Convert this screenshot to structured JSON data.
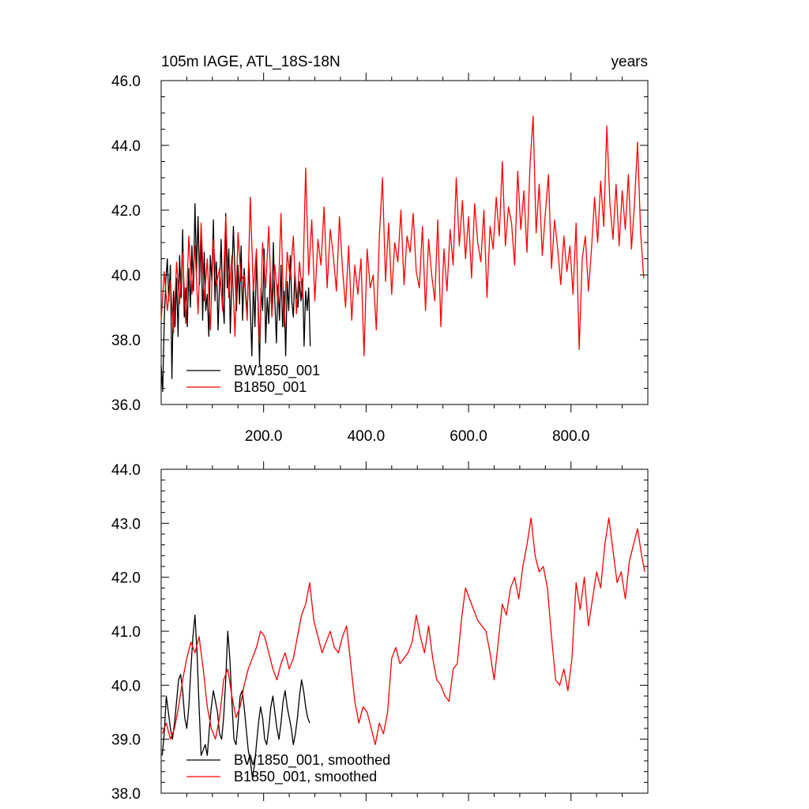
{
  "figure": {
    "title_left": "105m IAGE, ATL_18S-18N",
    "title_right": "years"
  },
  "colors": {
    "series_a": "#000000",
    "series_b": "#ff0000",
    "frame": "#000000"
  },
  "chart_data": [
    {
      "type": "line",
      "title": "105m IAGE, ATL_18S-18N",
      "units": "years",
      "xlim": [
        0,
        950
      ],
      "ylim": [
        36.0,
        46.0
      ],
      "x_ticks": [
        200,
        400,
        600,
        800
      ],
      "x_tick_labels": [
        "200.0",
        "400.0",
        "600.0",
        "800.0"
      ],
      "y_ticks": [
        36,
        38,
        40,
        42,
        44,
        46
      ],
      "y_tick_labels": [
        "36.0",
        "38.0",
        "40.0",
        "42.0",
        "44.0",
        "46.0"
      ],
      "legend_position": "bottom-left",
      "grid": false,
      "series": [
        {
          "name": "BW1850_001",
          "color": "#000000",
          "x": [
            0,
            3,
            6,
            9,
            12,
            15,
            18,
            21,
            24,
            27,
            30,
            33,
            36,
            39,
            42,
            45,
            48,
            51,
            54,
            57,
            60,
            63,
            66,
            69,
            72,
            75,
            78,
            81,
            84,
            87,
            90,
            93,
            96,
            99,
            102,
            105,
            108,
            111,
            114,
            117,
            120,
            123,
            126,
            129,
            132,
            135,
            138,
            141,
            144,
            147,
            150,
            153,
            156,
            159,
            162,
            165,
            168,
            171,
            174,
            177,
            180,
            183,
            186,
            189,
            192,
            195,
            198,
            201,
            204,
            207,
            210,
            213,
            216,
            219,
            222,
            225,
            228,
            231,
            234,
            237,
            240,
            243,
            246,
            249,
            252,
            255,
            258,
            261,
            264,
            267,
            270,
            273,
            276,
            279,
            282,
            285,
            288,
            291
          ],
          "y": [
            37.2,
            36.4,
            38.6,
            39.8,
            40.5,
            39.2,
            40.3,
            36.8,
            39.5,
            38.4,
            39.9,
            38.1,
            40.6,
            39.3,
            41.4,
            38.7,
            39.6,
            38.4,
            40.2,
            39.0,
            40.9,
            39.5,
            42.2,
            40.1,
            41.8,
            39.7,
            41.2,
            38.6,
            40.7,
            38.9,
            39.4,
            38.1,
            40.6,
            39.8,
            41.7,
            39.2,
            40.4,
            38.3,
            39.7,
            41.1,
            39.3,
            38.5,
            41.9,
            39.6,
            40.8,
            38.2,
            39.9,
            41.5,
            40.1,
            38.9,
            40.3,
            39.1,
            40.9,
            38.6,
            40.2,
            39.4,
            38.8,
            40.4,
            39.0,
            37.5,
            39.8,
            38.4,
            40.5,
            39.1,
            37.2,
            39.6,
            38.9,
            40.8,
            37.9,
            39.3,
            38.5,
            40.1,
            38.8,
            41.0,
            39.2,
            37.9,
            39.7,
            38.6,
            40.3,
            38.4,
            39.5,
            37.5,
            39.8,
            38.9,
            40.6,
            39.2,
            38.7,
            40.1,
            39.4,
            39.0,
            39.8,
            39.2,
            39.9,
            37.8,
            39.5,
            38.9,
            39.6,
            37.8
          ]
        },
        {
          "name": "B1850_001",
          "color": "#ff0000",
          "x": [
            0,
            6,
            12,
            18,
            24,
            30,
            36,
            42,
            48,
            54,
            60,
            66,
            72,
            78,
            84,
            90,
            96,
            102,
            108,
            114,
            120,
            126,
            132,
            138,
            144,
            150,
            156,
            162,
            168,
            174,
            180,
            186,
            192,
            198,
            204,
            210,
            216,
            222,
            228,
            234,
            240,
            246,
            252,
            258,
            264,
            270,
            276,
            282,
            288,
            294,
            300,
            306,
            312,
            318,
            324,
            330,
            336,
            342,
            348,
            354,
            360,
            366,
            372,
            378,
            384,
            390,
            396,
            402,
            408,
            414,
            420,
            426,
            432,
            438,
            444,
            450,
            456,
            462,
            468,
            474,
            480,
            486,
            492,
            498,
            504,
            510,
            516,
            522,
            528,
            534,
            540,
            546,
            552,
            558,
            564,
            570,
            576,
            582,
            588,
            594,
            600,
            606,
            612,
            618,
            624,
            630,
            636,
            642,
            648,
            654,
            660,
            666,
            672,
            678,
            684,
            690,
            696,
            702,
            708,
            714,
            720,
            726,
            732,
            738,
            744,
            750,
            756,
            762,
            768,
            774,
            780,
            786,
            792,
            798,
            804,
            810,
            816,
            822,
            828,
            834,
            840,
            846,
            852,
            858,
            864,
            870,
            876,
            882,
            888,
            894,
            900,
            906,
            912,
            918,
            924,
            930,
            936,
            942
          ],
          "y": [
            38.6,
            40.1,
            38.9,
            39.8,
            38.2,
            40.4,
            39.1,
            40.7,
            38.5,
            41.2,
            39.4,
            40.9,
            38.8,
            41.6,
            39.2,
            40.5,
            38.3,
            41.1,
            39.7,
            40.2,
            38.9,
            41.8,
            39.3,
            40.6,
            38.1,
            41.3,
            39.8,
            40.0,
            38.6,
            42.4,
            39.5,
            40.8,
            37.9,
            41.0,
            39.6,
            41.5,
            38.7,
            40.3,
            39.1,
            41.9,
            38.4,
            40.7,
            39.9,
            41.2,
            38.8,
            40.4,
            39.3,
            43.3,
            40.0,
            41.7,
            39.2,
            41.1,
            40.3,
            42.1,
            39.6,
            41.4,
            40.6,
            39.5,
            41.8,
            40.2,
            39.0,
            40.9,
            38.6,
            40.3,
            39.4,
            40.5,
            37.5,
            40.8,
            39.6,
            40.0,
            38.3,
            41.2,
            43.0,
            39.8,
            41.6,
            39.4,
            41.0,
            40.4,
            42.0,
            39.7,
            41.2,
            40.7,
            41.9,
            40.1,
            39.6,
            41.5,
            38.9,
            41.1,
            40.0,
            39.2,
            41.7,
            38.4,
            40.8,
            39.5,
            41.4,
            40.3,
            43.0,
            40.9,
            42.3,
            40.5,
            41.8,
            39.9,
            42.2,
            41.0,
            40.4,
            42.0,
            39.3,
            41.5,
            40.8,
            42.4,
            41.2,
            43.5,
            40.9,
            42.1,
            41.6,
            40.3,
            43.2,
            41.4,
            42.6,
            40.7,
            43.4,
            44.9,
            41.3,
            42.8,
            40.6,
            41.9,
            43.1,
            40.2,
            41.7,
            40.8,
            39.7,
            41.2,
            40.1,
            40.9,
            39.4,
            41.6,
            37.7,
            40.5,
            41.2,
            39.5,
            40.8,
            42.4,
            41.0,
            42.9,
            41.5,
            44.6,
            42.2,
            41.1,
            42.8,
            40.9,
            42.6,
            41.4,
            43.1,
            40.8,
            42.2,
            44.1,
            41.3,
            39.9
          ]
        }
      ],
      "legend": [
        "BW1850_001",
        "B1850_001"
      ]
    },
    {
      "type": "line",
      "xlim": [
        0,
        950
      ],
      "ylim": [
        38.0,
        44.0
      ],
      "y_ticks": [
        38,
        39,
        40,
        41,
        42,
        43,
        44
      ],
      "y_tick_labels": [
        "38.0",
        "39.0",
        "40.0",
        "41.0",
        "42.0",
        "43.0",
        "44.0"
      ],
      "legend_position": "bottom-left",
      "grid": false,
      "series": [
        {
          "name": "BW1850_001, smoothed",
          "color": "#000000",
          "x": [
            2,
            6,
            10,
            14,
            18,
            22,
            26,
            30,
            34,
            38,
            42,
            46,
            50,
            54,
            58,
            62,
            66,
            70,
            74,
            78,
            82,
            86,
            90,
            94,
            98,
            102,
            106,
            110,
            114,
            118,
            122,
            126,
            130,
            134,
            138,
            142,
            146,
            150,
            154,
            158,
            162,
            166,
            170,
            174,
            178,
            182,
            186,
            190,
            194,
            198,
            202,
            206,
            210,
            214,
            218,
            222,
            226,
            230,
            234,
            238,
            242,
            246,
            250,
            254,
            258,
            262,
            266,
            270,
            274,
            278,
            282,
            286,
            290
          ],
          "y": [
            38.7,
            39.1,
            39.8,
            39.5,
            39.2,
            39.0,
            39.3,
            39.7,
            40.1,
            40.2,
            39.9,
            39.4,
            39.2,
            39.6,
            40.3,
            40.9,
            41.3,
            40.6,
            39.6,
            38.7,
            38.8,
            38.9,
            38.7,
            39.2,
            39.6,
            39.9,
            39.7,
            39.5,
            39.1,
            39.0,
            39.4,
            40.1,
            41.0,
            40.5,
            39.7,
            39.0,
            38.9,
            39.3,
            39.8,
            39.9,
            39.6,
            39.2,
            38.8,
            38.6,
            38.3,
            38.5,
            38.9,
            39.3,
            39.6,
            39.4,
            39.0,
            38.9,
            39.2,
            39.6,
            39.8,
            39.5,
            39.2,
            39.0,
            39.3,
            39.7,
            39.9,
            39.6,
            39.4,
            39.2,
            38.9,
            39.1,
            39.4,
            39.8,
            40.1,
            39.9,
            39.6,
            39.4,
            39.3
          ]
        },
        {
          "name": "B1850_001, smoothed",
          "color": "#ff0000",
          "x": [
            2,
            10,
            18,
            26,
            34,
            42,
            50,
            58,
            66,
            74,
            82,
            90,
            98,
            106,
            114,
            122,
            130,
            138,
            146,
            154,
            162,
            170,
            178,
            186,
            194,
            202,
            210,
            218,
            226,
            234,
            242,
            250,
            258,
            266,
            274,
            282,
            290,
            298,
            306,
            314,
            322,
            330,
            338,
            346,
            354,
            362,
            370,
            378,
            386,
            394,
            402,
            410,
            418,
            426,
            434,
            442,
            450,
            458,
            466,
            474,
            482,
            490,
            498,
            506,
            514,
            522,
            530,
            538,
            546,
            554,
            562,
            570,
            578,
            586,
            594,
            602,
            610,
            618,
            626,
            634,
            642,
            650,
            658,
            666,
            674,
            682,
            690,
            698,
            706,
            714,
            722,
            730,
            738,
            746,
            754,
            762,
            770,
            778,
            786,
            794,
            802,
            810,
            818,
            826,
            834,
            842,
            850,
            858,
            866,
            874,
            882,
            890,
            898,
            906,
            914,
            922,
            930,
            938,
            944
          ],
          "y": [
            39.1,
            39.3,
            39.0,
            39.2,
            39.6,
            40.1,
            40.5,
            40.8,
            40.6,
            40.9,
            40.3,
            39.6,
            39.2,
            39.0,
            39.4,
            40.1,
            40.3,
            39.8,
            39.4,
            39.6,
            40.0,
            40.3,
            40.5,
            40.7,
            41.0,
            40.9,
            40.6,
            40.3,
            40.1,
            40.4,
            40.6,
            40.3,
            40.5,
            40.9,
            41.3,
            41.5,
            41.9,
            41.2,
            40.9,
            40.6,
            40.8,
            41.0,
            40.7,
            40.6,
            40.9,
            41.1,
            40.4,
            39.7,
            39.3,
            39.6,
            39.5,
            39.2,
            38.9,
            39.3,
            39.1,
            39.5,
            40.5,
            40.7,
            40.4,
            40.5,
            40.6,
            40.8,
            41.3,
            40.9,
            40.6,
            41.1,
            40.5,
            40.1,
            40.0,
            39.8,
            39.7,
            40.3,
            40.4,
            41.2,
            41.8,
            41.6,
            41.4,
            41.2,
            41.1,
            41.0,
            40.6,
            40.1,
            40.8,
            41.5,
            41.3,
            41.8,
            42.0,
            41.6,
            42.2,
            42.6,
            43.1,
            42.4,
            42.1,
            42.2,
            41.8,
            40.9,
            40.1,
            40.0,
            40.3,
            39.9,
            40.5,
            41.9,
            41.4,
            42.0,
            41.1,
            41.6,
            42.1,
            41.8,
            42.6,
            43.1,
            42.5,
            41.9,
            42.1,
            41.6,
            42.3,
            42.6,
            42.9,
            42.4,
            42.1
          ]
        }
      ],
      "legend": [
        "BW1850_001, smoothed",
        "B1850_001, smoothed"
      ]
    }
  ]
}
